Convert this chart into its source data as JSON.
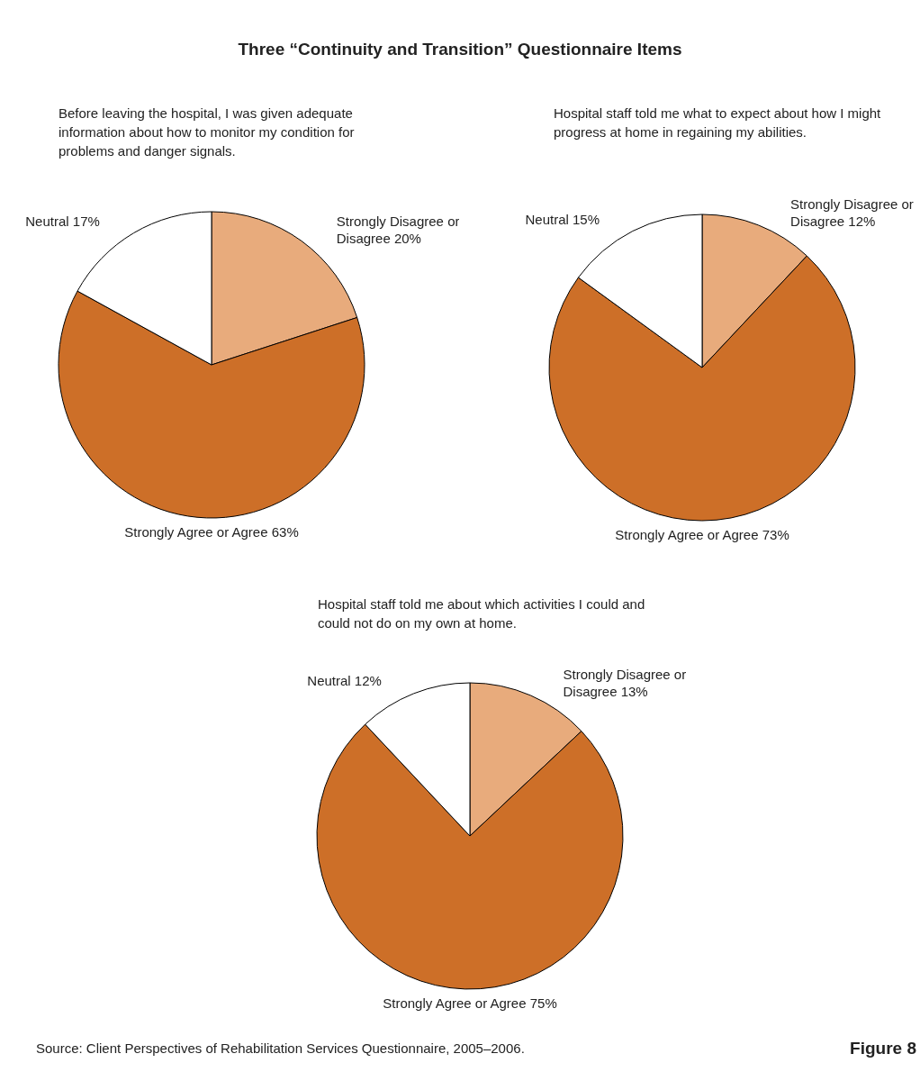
{
  "chart_data": [
    {
      "type": "pie",
      "title": "Three “Continuity and Transition” Questionnaire Items",
      "subtitle": "Before leaving the hospital, I was given adequate information about how to monitor my condition for problems and danger signals.",
      "categories": [
        "Strongly Disagree or Disagree",
        "Strongly Agree or Agree",
        "Neutral"
      ],
      "values": [
        20,
        63,
        17
      ],
      "value_labels": [
        "20%",
        "63%",
        "17%"
      ],
      "colors": [
        "#e8ab7c",
        "#cd6f28",
        "#ffffff"
      ]
    },
    {
      "type": "pie",
      "subtitle": "Hospital staff told me what to expect about how I might progress at home in regaining my abilities.",
      "categories": [
        "Strongly Disagree or Disagree",
        "Strongly Agree or Agree",
        "Neutral"
      ],
      "values": [
        12,
        73,
        15
      ],
      "value_labels": [
        "12%",
        "73%",
        "15%"
      ],
      "colors": [
        "#e8ab7c",
        "#cd6f28",
        "#ffffff"
      ]
    },
    {
      "type": "pie",
      "subtitle": "Hospital staff told me about which activities I could and could not do on my own at home.",
      "categories": [
        "Strongly Disagree or Disagree",
        "Strongly Agree or Agree",
        "Neutral"
      ],
      "values": [
        13,
        75,
        12
      ],
      "value_labels": [
        "13%",
        "75%",
        "12%"
      ],
      "colors": [
        "#e8ab7c",
        "#cd6f28",
        "#ffffff"
      ],
      "annotations": [
        "Source: Client Perspectives of Rehabilitation Services Questionnaire, 2005–2006.",
        "Figure 8"
      ]
    }
  ]
}
